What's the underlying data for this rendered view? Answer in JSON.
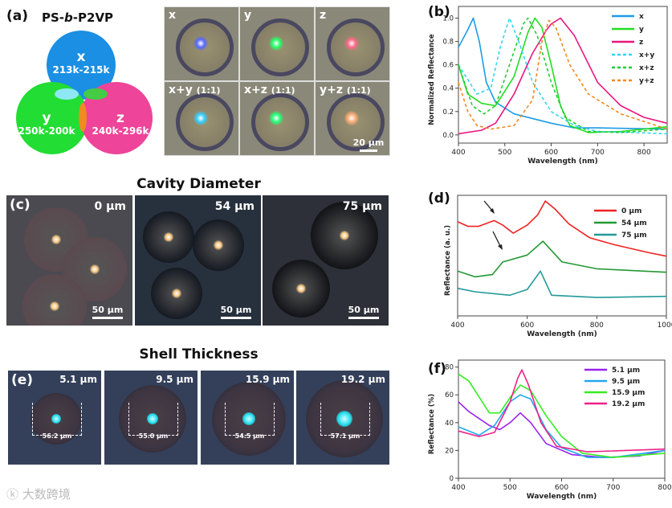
{
  "panel_a": {
    "label": "(a)",
    "title": "PS-b-P2VP",
    "title_parts": [
      "PS-",
      "b",
      "-P2VP"
    ],
    "venn": [
      {
        "name": "x",
        "range": "213k-215k",
        "color": "#1a8fe3"
      },
      {
        "name": "y",
        "range": "250k-200k",
        "color": "#22dd33"
      },
      {
        "name": "z",
        "range": "240k-296k",
        "color": "#ee4499"
      }
    ],
    "micrographs": [
      {
        "label": "x",
        "ratio": "",
        "spot": "#5566ff"
      },
      {
        "label": "y",
        "ratio": "",
        "spot": "#22ff66"
      },
      {
        "label": "z",
        "ratio": "",
        "spot": "#ff6688"
      },
      {
        "label": "x+y",
        "ratio": "(1:1)",
        "spot": "#33ccff"
      },
      {
        "label": "x+z",
        "ratio": "(1:1)",
        "spot": "#22ff77"
      },
      {
        "label": "y+z",
        "ratio": "(1:1)",
        "spot": "#ffaa77"
      }
    ],
    "scale_bar": "20 µm"
  },
  "panel_c": {
    "label": "(c)",
    "title": "Cavity Diameter",
    "panels": [
      {
        "value": "0 µm",
        "scale": "50 µm"
      },
      {
        "value": "54 µm",
        "scale": "50 µm"
      },
      {
        "value": "75 µm",
        "scale": "50 µm"
      }
    ]
  },
  "panel_e": {
    "label": "(e)",
    "title": "Shell Thickness",
    "panels": [
      {
        "value": "5.1 µm",
        "diameter": "56.2 µm"
      },
      {
        "value": "9.5 µm",
        "diameter": "55.0 µm"
      },
      {
        "value": "15.9 µm",
        "diameter": "54.5 µm"
      },
      {
        "value": "19.2 µm",
        "diameter": "57.1 µm"
      }
    ]
  },
  "watermark": "大数跨境",
  "chart_data": [
    {
      "id": "b",
      "label": "(b)",
      "type": "line",
      "xlabel": "Wavelength (nm)",
      "ylabel": "Normalized Reflectance",
      "xlim": [
        400,
        850
      ],
      "ylim": [
        -0.07,
        1.1
      ],
      "xticks": [
        400,
        500,
        600,
        700,
        800
      ],
      "yticks": [
        0.0,
        0.2,
        0.4,
        0.6,
        0.8,
        1.0
      ],
      "ytick_labels": [
        "0.0",
        "0.2",
        "0.4",
        "0.6",
        "0.8",
        "1.0"
      ],
      "legend": "top-right",
      "series": [
        {
          "name": "x",
          "color": "#1e9be8",
          "dash": false,
          "points": [
            [
              400,
              0.75
            ],
            [
              420,
              0.9
            ],
            [
              432,
              1.0
            ],
            [
              445,
              0.8
            ],
            [
              460,
              0.45
            ],
            [
              480,
              0.28
            ],
            [
              520,
              0.18
            ],
            [
              600,
              0.1
            ],
            [
              650,
              0.06
            ],
            [
              700,
              0.06
            ],
            [
              850,
              0.05
            ]
          ]
        },
        {
          "name": "y",
          "color": "#22dd22",
          "dash": false,
          "points": [
            [
              400,
              0.6
            ],
            [
              420,
              0.35
            ],
            [
              450,
              0.27
            ],
            [
              480,
              0.25
            ],
            [
              520,
              0.5
            ],
            [
              550,
              0.88
            ],
            [
              565,
              1.0
            ],
            [
              580,
              0.92
            ],
            [
              600,
              0.6
            ],
            [
              620,
              0.25
            ],
            [
              640,
              0.08
            ],
            [
              680,
              0.02
            ],
            [
              750,
              0.03
            ],
            [
              850,
              0.07
            ]
          ]
        },
        {
          "name": "z",
          "color": "#e8167f",
          "dash": false,
          "points": [
            [
              400,
              0.01
            ],
            [
              450,
              0.04
            ],
            [
              480,
              0.1
            ],
            [
              520,
              0.35
            ],
            [
              560,
              0.7
            ],
            [
              590,
              0.9
            ],
            [
              600,
              0.95
            ],
            [
              620,
              1.0
            ],
            [
              650,
              0.85
            ],
            [
              700,
              0.45
            ],
            [
              750,
              0.25
            ],
            [
              800,
              0.15
            ],
            [
              850,
              0.1
            ]
          ]
        },
        {
          "name": "x+y",
          "color": "#33d6f0",
          "dash": true,
          "points": [
            [
              400,
              0.6
            ],
            [
              440,
              0.35
            ],
            [
              470,
              0.4
            ],
            [
              490,
              0.75
            ],
            [
              510,
              1.0
            ],
            [
              530,
              0.8
            ],
            [
              560,
              0.45
            ],
            [
              600,
              0.2
            ],
            [
              650,
              0.08
            ],
            [
              700,
              0.03
            ],
            [
              850,
              0.01
            ]
          ]
        },
        {
          "name": "x+z",
          "color": "#22cc33",
          "dash": true,
          "points": [
            [
              400,
              0.6
            ],
            [
              430,
              0.25
            ],
            [
              455,
              0.18
            ],
            [
              480,
              0.25
            ],
            [
              510,
              0.6
            ],
            [
              540,
              0.95
            ],
            [
              550,
              1.0
            ],
            [
              570,
              0.85
            ],
            [
              600,
              0.45
            ],
            [
              630,
              0.15
            ],
            [
              680,
              0.03
            ],
            [
              750,
              0.02
            ],
            [
              850,
              0.05
            ]
          ]
        },
        {
          "name": "y+z",
          "color": "#f08a22",
          "dash": true,
          "points": [
            [
              400,
              0.45
            ],
            [
              420,
              0.2
            ],
            [
              440,
              0.08
            ],
            [
              470,
              0.05
            ],
            [
              520,
              0.08
            ],
            [
              560,
              0.3
            ],
            [
              580,
              0.8
            ],
            [
              595,
              0.98
            ],
            [
              610,
              0.92
            ],
            [
              640,
              0.6
            ],
            [
              680,
              0.35
            ],
            [
              750,
              0.18
            ],
            [
              850,
              0.05
            ]
          ]
        }
      ]
    },
    {
      "id": "d",
      "label": "(d)",
      "type": "line",
      "xlabel": "Wavelength (nm)",
      "ylabel": "Reflectance (a. u.)",
      "xlim": [
        400,
        1000
      ],
      "ylim": [
        0,
        1.05
      ],
      "xticks": [
        400,
        600,
        800,
        1000
      ],
      "yticks": [],
      "ytick_labels": [],
      "legend": "top-right",
      "series": [
        {
          "name": "0 µm",
          "color": "#ee2222",
          "dash": false,
          "points": [
            [
              400,
              0.82
            ],
            [
              430,
              0.78
            ],
            [
              460,
              0.78
            ],
            [
              505,
              0.83
            ],
            [
              530,
              0.79
            ],
            [
              560,
              0.72
            ],
            [
              600,
              0.79
            ],
            [
              630,
              0.88
            ],
            [
              652,
              1.0
            ],
            [
              680,
              0.93
            ],
            [
              720,
              0.8
            ],
            [
              780,
              0.68
            ],
            [
              850,
              0.62
            ],
            [
              950,
              0.55
            ],
            [
              1000,
              0.52
            ]
          ]
        },
        {
          "name": "54 µm",
          "color": "#229933",
          "dash": false,
          "points": [
            [
              400,
              0.39
            ],
            [
              450,
              0.34
            ],
            [
              500,
              0.36
            ],
            [
              530,
              0.47
            ],
            [
              600,
              0.53
            ],
            [
              645,
              0.65
            ],
            [
              700,
              0.47
            ],
            [
              800,
              0.41
            ],
            [
              1000,
              0.38
            ]
          ]
        },
        {
          "name": "75 µm",
          "color": "#229999",
          "dash": false,
          "points": [
            [
              400,
              0.24
            ],
            [
              450,
              0.21
            ],
            [
              550,
              0.18
            ],
            [
              600,
              0.23
            ],
            [
              638,
              0.39
            ],
            [
              670,
              0.18
            ],
            [
              800,
              0.16
            ],
            [
              1000,
              0.17
            ]
          ]
        }
      ]
    },
    {
      "id": "f",
      "label": "(f)",
      "type": "line",
      "xlabel": "Wavelength (nm)",
      "ylabel": "Reflectance (%)",
      "xlim": [
        400,
        800
      ],
      "ylim": [
        0,
        85
      ],
      "xticks": [
        400,
        500,
        600,
        700,
        800
      ],
      "yticks": [
        0,
        20,
        40,
        60,
        80
      ],
      "ytick_labels": [
        "0",
        "20",
        "40",
        "60",
        "80"
      ],
      "legend": "top-right",
      "series": [
        {
          "name": "5.1 µm",
          "color": "#9922ee",
          "dash": false,
          "points": [
            [
              400,
              55
            ],
            [
              420,
              48
            ],
            [
              460,
              38
            ],
            [
              480,
              35
            ],
            [
              500,
              40
            ],
            [
              520,
              47
            ],
            [
              540,
              40
            ],
            [
              570,
              25
            ],
            [
              620,
              17
            ],
            [
              680,
              15
            ],
            [
              750,
              16
            ],
            [
              800,
              20
            ]
          ]
        },
        {
          "name": "9.5 µm",
          "color": "#22a8ee",
          "dash": false,
          "points": [
            [
              400,
              37
            ],
            [
              440,
              31
            ],
            [
              470,
              38
            ],
            [
              500,
              55
            ],
            [
              520,
              60
            ],
            [
              540,
              57
            ],
            [
              570,
              35
            ],
            [
              600,
              22
            ],
            [
              650,
              15
            ],
            [
              700,
              15
            ],
            [
              800,
              20
            ]
          ]
        },
        {
          "name": "15.9 µm",
          "color": "#33ee22",
          "dash": false,
          "points": [
            [
              400,
              75
            ],
            [
              420,
              70
            ],
            [
              460,
              47
            ],
            [
              480,
              47
            ],
            [
              500,
              58
            ],
            [
              520,
              67
            ],
            [
              540,
              63
            ],
            [
              570,
              45
            ],
            [
              600,
              30
            ],
            [
              640,
              18
            ],
            [
              700,
              15
            ],
            [
              800,
              18
            ]
          ]
        },
        {
          "name": "19.2 µm",
          "color": "#ee2288",
          "dash": false,
          "points": [
            [
              400,
              34
            ],
            [
              440,
              30
            ],
            [
              470,
              33
            ],
            [
              500,
              55
            ],
            [
              515,
              72
            ],
            [
              523,
              78
            ],
            [
              535,
              68
            ],
            [
              560,
              40
            ],
            [
              590,
              23
            ],
            [
              650,
              19
            ],
            [
              800,
              21
            ]
          ]
        }
      ]
    }
  ]
}
